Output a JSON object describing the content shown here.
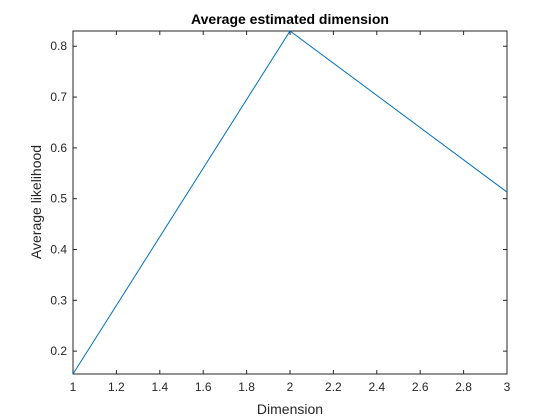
{
  "chart_data": {
    "type": "line",
    "title": "Average estimated dimension",
    "xlabel": "Dimension",
    "ylabel": "Average likelihood",
    "xlim": [
      1,
      3
    ],
    "ylim": [
      0.155,
      0.83
    ],
    "xticks": [
      1,
      1.2,
      1.4,
      1.6,
      1.8,
      2,
      2.2,
      2.4,
      2.6,
      2.8,
      3
    ],
    "xtick_labels": [
      "1",
      "1.2",
      "1.4",
      "1.6",
      "1.8",
      "2",
      "2.2",
      "2.4",
      "2.6",
      "2.8",
      "3"
    ],
    "yticks": [
      0.2,
      0.3,
      0.4,
      0.5,
      0.6,
      0.7,
      0.8
    ],
    "ytick_labels": [
      "0.2",
      "0.3",
      "0.4",
      "0.5",
      "0.6",
      "0.7",
      "0.8"
    ],
    "grid": false,
    "series": [
      {
        "x": [
          1,
          2,
          3
        ],
        "y": [
          0.155,
          0.83,
          0.513
        ],
        "color": "#0072BD"
      }
    ]
  }
}
